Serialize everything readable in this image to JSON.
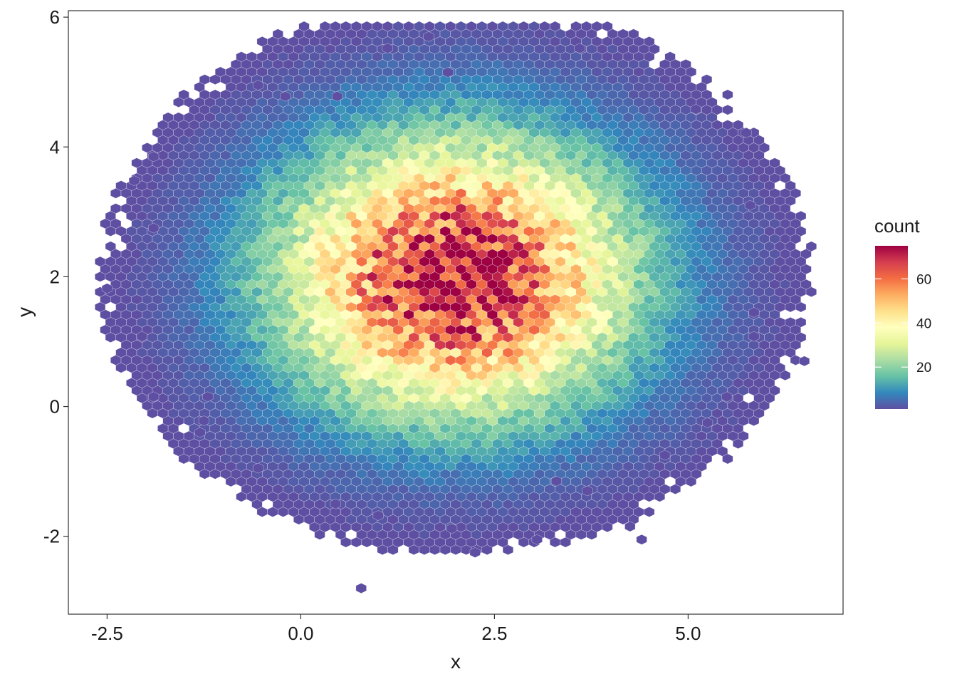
{
  "chart_data": {
    "type": "hexbin",
    "title": "",
    "xlabel": "x",
    "ylabel": "y",
    "xlim": [
      -3.0,
      7.0
    ],
    "ylim": [
      -3.2,
      6.1
    ],
    "x_ticks": [
      -2.5,
      0.0,
      2.5,
      5.0
    ],
    "x_tick_labels": [
      "-2.5",
      "0.0",
      "2.5",
      "5.0"
    ],
    "y_ticks": [
      -2,
      0,
      2,
      4,
      6
    ],
    "y_tick_labels": [
      "-2",
      "0",
      "2",
      "4",
      "6"
    ],
    "grid": false,
    "legend": {
      "title": "count",
      "position": "right",
      "range": [
        1,
        75
      ],
      "ticks": [
        20,
        40,
        60
      ],
      "tick_labels": [
        "20",
        "40",
        "60"
      ],
      "colormap": [
        "#5E4FA2",
        "#3288BD",
        "#66C2A5",
        "#ABDDA4",
        "#E6F598",
        "#FFFFBF",
        "#FEE08B",
        "#FDAE61",
        "#F46D43",
        "#D53E4F",
        "#9E0142"
      ]
    },
    "distribution": {
      "center": [
        2.0,
        2.0
      ],
      "sd": [
        1.5,
        1.4
      ],
      "peak_count": 75
    },
    "outlier_points": [
      [
        -2.5,
        1.82
      ],
      [
        -2.15,
        3.48
      ],
      [
        -1.9,
        3.85
      ],
      [
        -1.9,
        2.75
      ],
      [
        -2.05,
        1.08
      ],
      [
        -1.9,
        0.15
      ],
      [
        1.12,
        5.52
      ],
      [
        1.65,
        5.7
      ],
      [
        3.6,
        5.52
      ],
      [
        1.9,
        5.15
      ],
      [
        -0.55,
        4.95
      ],
      [
        -0.2,
        4.78
      ],
      [
        0.47,
        4.78
      ],
      [
        5.1,
        4.58
      ],
      [
        5.75,
        4.22
      ],
      [
        5.8,
        3.1
      ],
      [
        5.85,
        1.45
      ],
      [
        5.85,
        1.08
      ],
      [
        6.5,
        0.7
      ],
      [
        5.5,
        0.15
      ],
      [
        5.25,
        -0.25
      ],
      [
        4.7,
        -0.75
      ],
      [
        3.7,
        -1.3
      ],
      [
        3.3,
        -1.15
      ],
      [
        4.25,
        -1.85
      ],
      [
        4.4,
        -2.05
      ],
      [
        3.05,
        -2.05
      ],
      [
        2.25,
        -2.25
      ],
      [
        1.95,
        -1.88
      ],
      [
        1.0,
        -1.68
      ],
      [
        0.45,
        -1.5
      ],
      [
        0.78,
        -2.8
      ],
      [
        -0.55,
        -0.95
      ],
      [
        -1.3,
        -0.4
      ],
      [
        -1.25,
        -0.22
      ],
      [
        -1.2,
        0.15
      ]
    ]
  }
}
